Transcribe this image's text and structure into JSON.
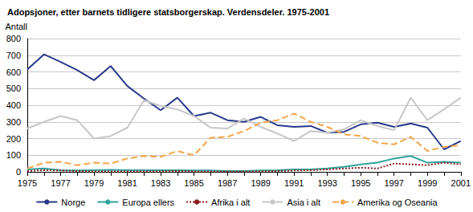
{
  "chart_data": {
    "type": "line",
    "title": "Adopsjoner, etter barnets tidligere statsborgerskap. Verdensdeler. 1975-2001",
    "y_label": "Antall",
    "categories": [
      "1975",
      null,
      "1977",
      null,
      "1979",
      null,
      "1981",
      null,
      "1983",
      null,
      "1985",
      null,
      "1987",
      null,
      "1989",
      null,
      "1991",
      null,
      "1993",
      null,
      "1995",
      null,
      "1997",
      null,
      "1999",
      null,
      "2001"
    ],
    "ylim": [
      0,
      800
    ],
    "yticks": [
      0,
      100,
      200,
      300,
      400,
      500,
      600,
      700,
      800
    ],
    "grid": true,
    "legend": "bottom",
    "series": [
      {
        "name": "Norge",
        "color": "#2b3a8c",
        "line_style": "solid",
        "values": [
          615,
          705,
          660,
          610,
          550,
          635,
          515,
          440,
          370,
          445,
          335,
          355,
          310,
          300,
          330,
          280,
          270,
          275,
          235,
          240,
          285,
          295,
          270,
          290,
          265,
          135,
          185
        ]
      },
      {
        "name": "Europa ellers",
        "color": "#2fa39b",
        "line_style": "solid",
        "values": [
          15,
          20,
          10,
          8,
          10,
          12,
          10,
          10,
          10,
          10,
          8,
          8,
          5,
          5,
          8,
          10,
          15,
          15,
          20,
          30,
          45,
          55,
          80,
          95,
          55,
          60,
          55
        ]
      },
      {
        "name": "Afrika i alt",
        "color": "#8b1a1a",
        "line_style": "dotted",
        "values": [
          5,
          10,
          8,
          5,
          3,
          3,
          3,
          3,
          3,
          5,
          3,
          3,
          3,
          3,
          3,
          5,
          8,
          10,
          15,
          20,
          25,
          20,
          50,
          45,
          40,
          55,
          45
        ]
      },
      {
        "name": "Asia i alt",
        "color": "#c8c8c8",
        "line_style": "solid",
        "values": [
          260,
          300,
          335,
          310,
          200,
          215,
          265,
          430,
          395,
          375,
          335,
          265,
          260,
          320,
          270,
          230,
          185,
          245,
          235,
          255,
          310,
          275,
          250,
          445,
          310,
          375,
          445
        ]
      },
      {
        "name": "Amerika og Oseania",
        "color": "#f5a54a",
        "line_style": "dashed",
        "values": [
          20,
          55,
          60,
          40,
          55,
          50,
          80,
          95,
          90,
          125,
          100,
          205,
          210,
          245,
          295,
          310,
          350,
          300,
          270,
          225,
          215,
          175,
          165,
          210,
          125,
          150,
          160
        ]
      }
    ]
  }
}
